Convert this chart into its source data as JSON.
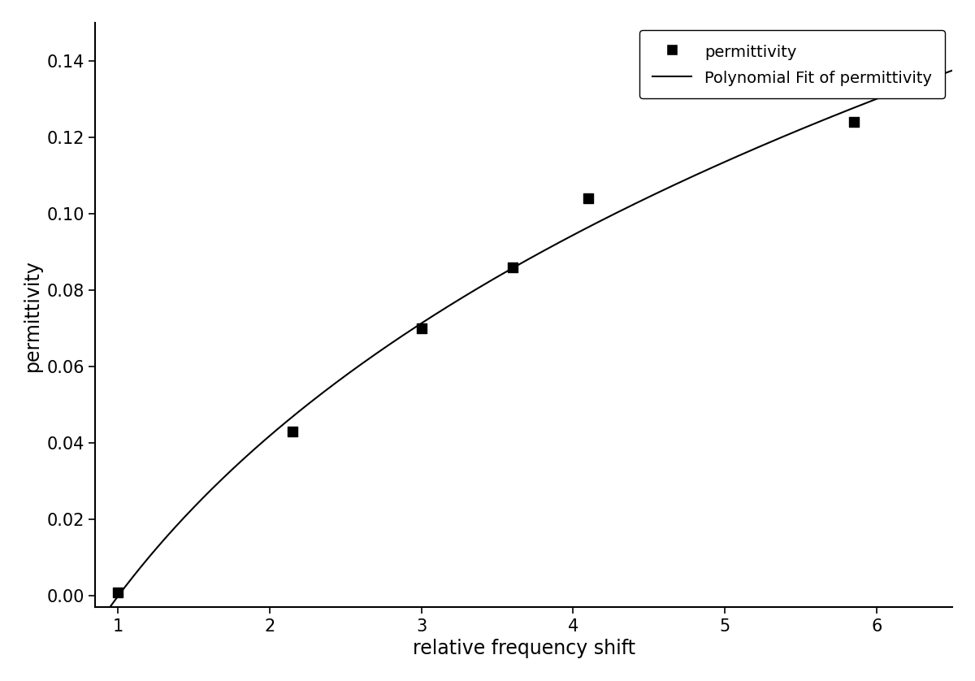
{
  "scatter_x": [
    1.0,
    2.15,
    3.0,
    3.6,
    4.1,
    5.85
  ],
  "scatter_y": [
    0.001,
    0.043,
    0.07,
    0.086,
    0.104,
    0.124
  ],
  "xlim": [
    0.85,
    6.5
  ],
  "ylim": [
    -0.003,
    0.15
  ],
  "xticks": [
    1,
    2,
    3,
    4,
    5,
    6
  ],
  "yticks": [
    0.0,
    0.02,
    0.04,
    0.06,
    0.08,
    0.1,
    0.12,
    0.14
  ],
  "xlabel": "relative frequency shift",
  "ylabel": "permittivity",
  "legend_scatter": "permittivity",
  "legend_line": "Polynomial Fit of permittivity",
  "marker_color": "#000000",
  "line_color": "#000000",
  "background_color": "#ffffff",
  "font_size_labels": 17,
  "font_size_ticks": 15,
  "font_size_legend": 14
}
